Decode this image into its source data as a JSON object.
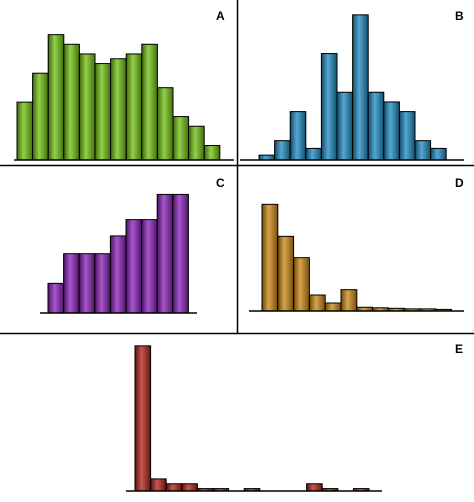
{
  "chart_data": [
    {
      "type": "bar",
      "label": "A",
      "color": "#6fbf10",
      "values": [
        6,
        9,
        13,
        12,
        11,
        10,
        10.5,
        11,
        12,
        7.5,
        4.5,
        3.5,
        1.5
      ],
      "ylim": [
        0,
        14
      ]
    },
    {
      "type": "bar",
      "label": "B",
      "color": "#1e88c0",
      "values": [
        0.5,
        2,
        5,
        1.2,
        11,
        7,
        15,
        7,
        6,
        5,
        2,
        1.2
      ],
      "ylim": [
        0,
        15.5
      ]
    },
    {
      "type": "bar",
      "label": "C",
      "color": "#8a1fb8",
      "values": [
        2,
        4,
        4,
        4,
        5.2,
        6.3,
        6.3,
        8,
        8
      ],
      "ylim": [
        0,
        8.5
      ]
    },
    {
      "type": "bar",
      "label": "D",
      "color": "#c98612",
      "values": [
        20,
        14,
        10,
        3,
        1.5,
        4,
        0.7,
        0.6,
        0.5,
        0.4,
        0.4,
        0.3
      ],
      "ylim": [
        0,
        21
      ]
    },
    {
      "type": "bar",
      "label": "E",
      "color": "#b01f14",
      "values": [
        60,
        5,
        3,
        3,
        1,
        1,
        0,
        1,
        0,
        0,
        0,
        3,
        1,
        0,
        1
      ],
      "ylim": [
        0,
        62
      ]
    }
  ]
}
